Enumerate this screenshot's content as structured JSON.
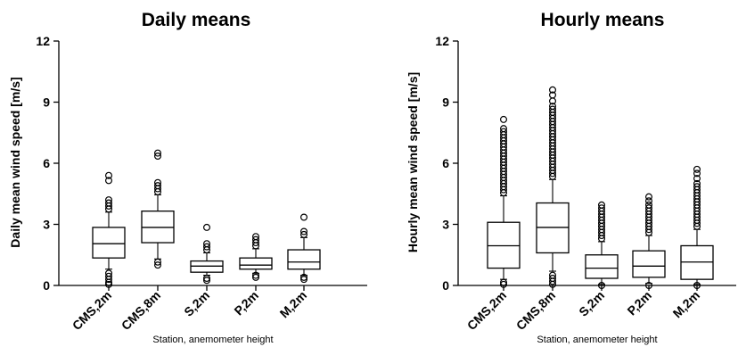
{
  "chart_data": [
    {
      "type": "box",
      "title": "Daily means",
      "xlabel": "Station, anemometer height",
      "ylabel": "Daily mean wind speed [m/s]",
      "ylim": [
        0,
        12
      ],
      "yticks": [
        0,
        3,
        6,
        9,
        12
      ],
      "categories": [
        "CMS,2m",
        "CMS,8m",
        "S,2m",
        "P,2m",
        "M,2m"
      ],
      "boxes": [
        {
          "q1": 1.35,
          "median": 2.05,
          "q3": 2.85,
          "whisker_low": 0.8,
          "whisker_high": 3.6,
          "outliers": [
            0.05,
            0.15,
            0.3,
            0.45,
            0.6,
            3.75,
            3.9,
            4.05,
            4.2,
            5.15,
            5.4
          ]
        },
        {
          "q1": 2.1,
          "median": 2.85,
          "q3": 3.65,
          "whisker_low": 1.3,
          "whisker_high": 4.45,
          "outliers": [
            1.0,
            1.15,
            4.6,
            4.75,
            4.9,
            5.05,
            6.35,
            6.5
          ]
        },
        {
          "q1": 0.65,
          "median": 0.95,
          "q3": 1.2,
          "whisker_low": 0.5,
          "whisker_high": 1.6,
          "outliers": [
            0.25,
            0.35,
            1.75,
            1.9,
            2.05,
            2.85
          ]
        },
        {
          "q1": 0.8,
          "median": 1.0,
          "q3": 1.35,
          "whisker_low": 0.6,
          "whisker_high": 1.8,
          "outliers": [
            0.4,
            0.5,
            1.95,
            2.1,
            2.25,
            2.4
          ]
        },
        {
          "q1": 0.8,
          "median": 1.15,
          "q3": 1.75,
          "whisker_low": 0.5,
          "whisker_high": 2.35,
          "outliers": [
            0.3,
            0.4,
            2.5,
            2.65,
            3.35
          ]
        }
      ]
    },
    {
      "type": "box",
      "title": "Hourly means",
      "xlabel": "Station, anemometer height",
      "ylabel": "Hourly mean wind speed [m/s]",
      "ylim": [
        0,
        12
      ],
      "yticks": [
        0,
        3,
        6,
        9,
        12
      ],
      "categories": [
        "CMS,2m",
        "CMS,8m",
        "S,2m",
        "P,2m",
        "M,2m"
      ],
      "boxes": [
        {
          "q1": 0.85,
          "median": 1.95,
          "q3": 3.1,
          "whisker_low": 0.3,
          "whisker_high": 4.4,
          "outliers": [
            0.05,
            0.15,
            4.55,
            4.7,
            4.85,
            5.0,
            5.15,
            5.3,
            5.45,
            5.6,
            5.75,
            5.9,
            6.05,
            6.2,
            6.35,
            6.5,
            6.65,
            6.8,
            6.95,
            7.1,
            7.25,
            7.4,
            7.55,
            7.7,
            8.15
          ]
        },
        {
          "q1": 1.6,
          "median": 2.85,
          "q3": 4.05,
          "whisker_low": 0.7,
          "whisker_high": 5.2,
          "outliers": [
            0.05,
            0.2,
            0.35,
            0.5,
            5.35,
            5.5,
            5.65,
            5.8,
            5.95,
            6.1,
            6.25,
            6.4,
            6.55,
            6.7,
            6.85,
            7.0,
            7.15,
            7.3,
            7.45,
            7.6,
            7.75,
            7.9,
            8.05,
            8.2,
            8.35,
            8.5,
            8.65,
            8.8,
            9.05,
            9.35,
            9.6
          ]
        },
        {
          "q1": 0.35,
          "median": 0.85,
          "q3": 1.5,
          "whisker_low": 0.05,
          "whisker_high": 2.15,
          "outliers": [
            0.0,
            2.3,
            2.45,
            2.6,
            2.75,
            2.9,
            3.05,
            3.2,
            3.35,
            3.5,
            3.65,
            3.8,
            3.95
          ]
        },
        {
          "q1": 0.4,
          "median": 0.95,
          "q3": 1.7,
          "whisker_low": 0.1,
          "whisker_high": 2.45,
          "outliers": [
            0.0,
            2.6,
            2.75,
            2.9,
            3.05,
            3.2,
            3.35,
            3.5,
            3.65,
            3.8,
            3.95,
            4.15,
            4.35
          ]
        },
        {
          "q1": 0.3,
          "median": 1.15,
          "q3": 1.95,
          "whisker_low": 0.05,
          "whisker_high": 2.75,
          "outliers": [
            0.0,
            2.9,
            3.05,
            3.2,
            3.35,
            3.5,
            3.65,
            3.8,
            3.95,
            4.1,
            4.25,
            4.4,
            4.55,
            4.7,
            4.85,
            5.0,
            5.25,
            5.5,
            5.7
          ]
        }
      ]
    }
  ]
}
